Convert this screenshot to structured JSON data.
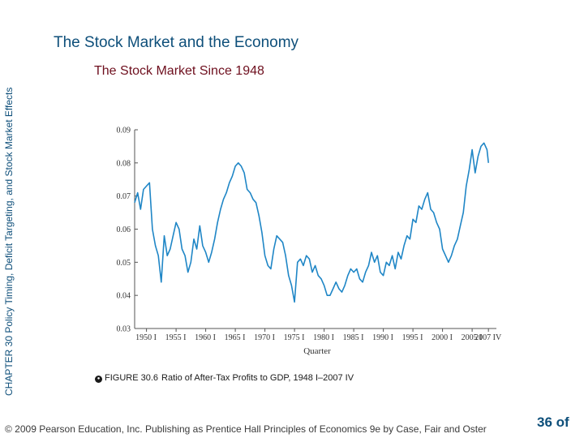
{
  "slide": {
    "title": "The Stock Market and the Economy",
    "side_label": "CHAPTER 30  Policy Timing, Deficit Targeting, and Stock Market Effects",
    "caption_icon": "figure-icon",
    "caption_number": "FIGURE 30.6",
    "caption_text": "Ratio of After-Tax Profits to GDP, 1948 I–2007 IV",
    "footer": "© 2009 Pearson Education, Inc. Publishing as Prentice Hall   Principles of Economics 9e by Case, Fair and Oster",
    "page_number": "36 of"
  },
  "colors": {
    "line": "#1f86c6",
    "title": "#0e4f7a",
    "chart_title": "#6e0f1e"
  },
  "chart_data": {
    "type": "line",
    "title": "The Stock Market Since 1948",
    "xlabel": "Quarter",
    "ylabel": "",
    "ylim": [
      0.03,
      0.09
    ],
    "xlim": [
      1948.0,
      2008.0
    ],
    "yticks": [
      "0.09",
      "0.08",
      "0.07",
      "0.06",
      "0.05",
      "0.04",
      "0.03"
    ],
    "xticks": [
      "1950 I",
      "1955 I",
      "1960 I",
      "1965 I",
      "1970 I",
      "1975 I",
      "1980 I",
      "1985 I",
      "1990 I",
      "1995 I",
      "2000 I",
      "2005 I",
      "2007 IV"
    ],
    "grid": false,
    "series": [
      {
        "x": [
          1948.0,
          1948.5,
          1949.0,
          1949.5,
          1950.0,
          1950.5,
          1951.0,
          1951.5,
          1952.0,
          1952.5,
          1953.0,
          1953.5,
          1954.0,
          1954.5,
          1955.0,
          1955.5,
          1956.0,
          1956.5,
          1957.0,
          1957.5,
          1958.0,
          1958.5,
          1959.0,
          1959.5,
          1960.0,
          1960.5,
          1961.0,
          1961.5,
          1962.0,
          1962.5,
          1963.0,
          1963.5,
          1964.0,
          1964.5,
          1965.0,
          1965.5,
          1966.0,
          1966.5,
          1967.0,
          1967.5,
          1968.0,
          1968.5,
          1969.0,
          1969.5,
          1970.0,
          1970.5,
          1971.0,
          1971.5,
          1972.0,
          1972.5,
          1973.0,
          1973.5,
          1974.0,
          1974.5,
          1975.0,
          1975.5,
          1976.0,
          1976.5,
          1977.0,
          1977.5,
          1978.0,
          1978.5,
          1979.0,
          1979.5,
          1980.0,
          1980.5,
          1981.0,
          1981.5,
          1982.0,
          1982.5,
          1983.0,
          1983.5,
          1984.0,
          1984.5,
          1985.0,
          1985.5,
          1986.0,
          1986.5,
          1987.0,
          1987.5,
          1988.0,
          1988.5,
          1989.0,
          1989.5,
          1990.0,
          1990.5,
          1991.0,
          1991.5,
          1992.0,
          1992.5,
          1993.0,
          1993.5,
          1994.0,
          1994.5,
          1995.0,
          1995.5,
          1996.0,
          1996.5,
          1997.0,
          1997.5,
          1998.0,
          1998.5,
          1999.0,
          1999.5,
          2000.0,
          2000.5,
          2001.0,
          2001.5,
          2002.0,
          2002.5,
          2003.0,
          2003.5,
          2004.0,
          2004.5,
          2005.0,
          2005.5,
          2006.0,
          2006.5,
          2007.0,
          2007.5,
          2007.75
        ],
        "values": [
          0.068,
          0.071,
          0.066,
          0.072,
          0.073,
          0.074,
          0.06,
          0.055,
          0.052,
          0.044,
          0.058,
          0.052,
          0.054,
          0.058,
          0.062,
          0.06,
          0.054,
          0.052,
          0.047,
          0.05,
          0.057,
          0.054,
          0.061,
          0.055,
          0.053,
          0.05,
          0.053,
          0.057,
          0.062,
          0.066,
          0.069,
          0.071,
          0.074,
          0.076,
          0.079,
          0.08,
          0.079,
          0.077,
          0.072,
          0.071,
          0.069,
          0.068,
          0.064,
          0.059,
          0.052,
          0.049,
          0.048,
          0.054,
          0.058,
          0.057,
          0.056,
          0.052,
          0.046,
          0.043,
          0.038,
          0.05,
          0.051,
          0.049,
          0.052,
          0.051,
          0.047,
          0.049,
          0.046,
          0.045,
          0.043,
          0.04,
          0.04,
          0.042,
          0.044,
          0.042,
          0.041,
          0.043,
          0.046,
          0.048,
          0.047,
          0.048,
          0.045,
          0.044,
          0.047,
          0.049,
          0.053,
          0.05,
          0.052,
          0.047,
          0.046,
          0.05,
          0.049,
          0.052,
          0.048,
          0.053,
          0.051,
          0.055,
          0.058,
          0.057,
          0.063,
          0.062,
          0.067,
          0.066,
          0.069,
          0.071,
          0.066,
          0.065,
          0.062,
          0.06,
          0.054,
          0.052,
          0.05,
          0.052,
          0.055,
          0.057,
          0.061,
          0.065,
          0.073,
          0.078,
          0.084,
          0.077,
          0.082,
          0.085,
          0.086,
          0.084,
          0.08
        ]
      }
    ]
  }
}
